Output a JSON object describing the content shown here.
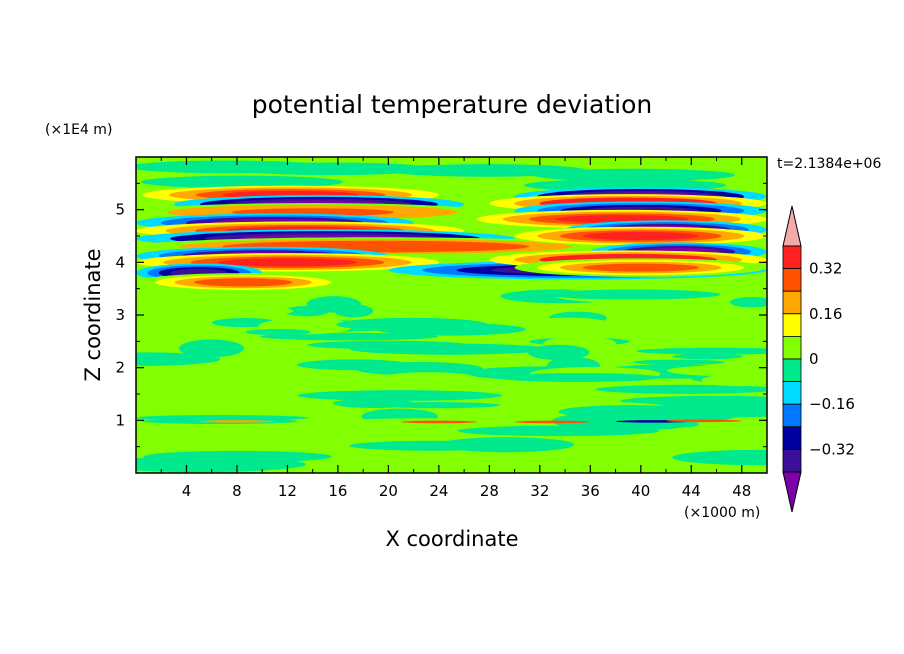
{
  "chart_data": {
    "type": "heatmap",
    "title": "potential temperature deviation",
    "xlabel": "X coordinate",
    "ylabel": "Z coordinate",
    "x_unit": "(×1000 m)",
    "y_unit": "(×1E4 m)",
    "time_label": "t=2.1384e+06",
    "xlim": [
      0,
      50
    ],
    "ylim": [
      0,
      6
    ],
    "x_ticks": [
      "4",
      "8",
      "12",
      "16",
      "20",
      "24",
      "28",
      "32",
      "36",
      "40",
      "44",
      "48"
    ],
    "y_ticks": [
      "1",
      "2",
      "3",
      "4",
      "5"
    ],
    "colorbar": {
      "colors": [
        "#7e00a8",
        "#3a0f9a",
        "#0000a0",
        "#0078ff",
        "#00dcff",
        "#00e98c",
        "#82ff00",
        "#ffff00",
        "#ffa800",
        "#ff5200",
        "#ff2020",
        "#f2aaaa"
      ],
      "levels": [
        -0.4,
        -0.32,
        -0.24,
        -0.16,
        -0.08,
        0,
        0.08,
        0.16,
        0.24,
        0.32,
        0.4
      ],
      "tick_labels": [
        "0.32",
        "0.16",
        "0",
        "−0.16",
        "−0.32"
      ],
      "tick_values": [
        0.32,
        0.16,
        0,
        -0.16,
        -0.32
      ],
      "extend": "both"
    },
    "bands": [
      {
        "z_center": 5.28,
        "amplitude": 0.38,
        "x_extent": [
          0.5,
          24
        ]
      },
      {
        "z_center": 5.1,
        "amplitude": -0.44,
        "x_extent": [
          3,
          26
        ]
      },
      {
        "z_center": 4.95,
        "amplitude": 0.3,
        "x_extent": [
          0,
          28
        ]
      },
      {
        "z_center": 4.75,
        "amplitude": -0.42,
        "x_extent": [
          0,
          22
        ]
      },
      {
        "z_center": 4.6,
        "amplitude": 0.36,
        "x_extent": [
          0,
          26
        ]
      },
      {
        "z_center": 4.45,
        "amplitude": -0.46,
        "x_extent": [
          0,
          30
        ]
      },
      {
        "z_center": 4.3,
        "amplitude": 0.32,
        "x_extent": [
          0,
          38
        ]
      },
      {
        "z_center": 4.12,
        "amplitude": -0.4,
        "x_extent": [
          0,
          20
        ]
      },
      {
        "z_center": 4.0,
        "amplitude": 0.34,
        "x_extent": [
          0,
          24
        ]
      },
      {
        "z_center": 3.8,
        "amplitude": -0.38,
        "x_extent": [
          0,
          10
        ]
      },
      {
        "z_center": 3.85,
        "amplitude": -0.36,
        "x_extent": [
          20,
          50
        ]
      },
      {
        "z_center": 3.62,
        "amplitude": 0.25,
        "x_extent": [
          0,
          17
        ]
      },
      {
        "z_center": 5.25,
        "amplitude": -0.44,
        "x_extent": [
          30,
          50
        ]
      },
      {
        "z_center": 5.12,
        "amplitude": 0.4,
        "x_extent": [
          28,
          50
        ]
      },
      {
        "z_center": 4.98,
        "amplitude": -0.36,
        "x_extent": [
          30,
          50
        ]
      },
      {
        "z_center": 4.82,
        "amplitude": 0.38,
        "x_extent": [
          27,
          50
        ]
      },
      {
        "z_center": 4.62,
        "amplitude": -0.42,
        "x_extent": [
          34,
          50
        ]
      },
      {
        "z_center": 4.5,
        "amplitude": 0.34,
        "x_extent": [
          30,
          50
        ]
      },
      {
        "z_center": 4.2,
        "amplitude": -0.42,
        "x_extent": [
          36,
          50
        ]
      },
      {
        "z_center": 4.05,
        "amplitude": 0.4,
        "x_extent": [
          28,
          50
        ]
      },
      {
        "z_center": 3.9,
        "amplitude": 0.25,
        "x_extent": [
          30,
          50
        ]
      }
    ]
  }
}
